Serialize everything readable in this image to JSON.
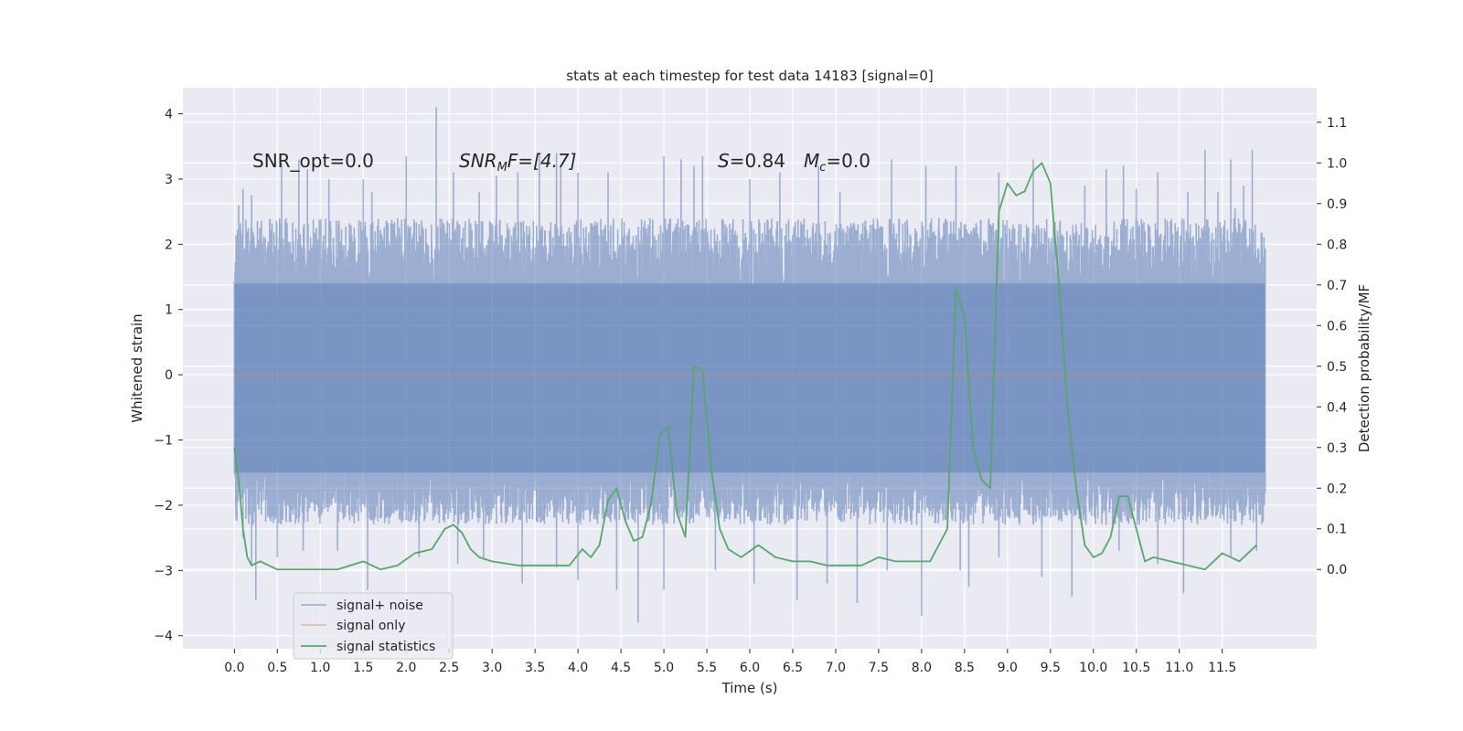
{
  "chart_data": {
    "type": "line",
    "title": "stats at each timestep for test data 14183 [signal=0]",
    "xlabel": "Time (s)",
    "ylabel": "Whitened strain",
    "y2label": "Detection probability/MF",
    "xlim": [
      -0.6,
      12.6
    ],
    "ylim": [
      -4.2,
      4.4
    ],
    "y2lim": [
      -0.195,
      1.185
    ],
    "xticks": [
      "0.0",
      "0.5",
      "1.0",
      "1.5",
      "2.0",
      "2.5",
      "3.0",
      "3.5",
      "4.0",
      "4.5",
      "5.0",
      "5.5",
      "6.0",
      "6.5",
      "7.0",
      "7.5",
      "8.0",
      "8.5",
      "9.0",
      "9.5",
      "10.0",
      "10.5",
      "11.0",
      "11.5"
    ],
    "yticks": [
      "4",
      "3",
      "2",
      "1",
      "0",
      "−1",
      "−2",
      "−3",
      "−4"
    ],
    "y2ticks": [
      "1.1",
      "1.0",
      "0.9",
      "0.8",
      "0.7",
      "0.6",
      "0.5",
      "0.4",
      "0.3",
      "0.2",
      "0.1",
      "0.0"
    ],
    "grid": true,
    "legend_position": "lower-left",
    "annotations": {
      "snr_opt": "SNR_opt=0.0",
      "snr_mf_var": "SNR",
      "snr_mf_sub": "M",
      "snr_mf_rest": "F=[4.7]",
      "s_var": "S",
      "s_rest": "=0.84",
      "mc_var": "M",
      "mc_sub": "c",
      "mc_rest": "=0.0"
    },
    "series": [
      {
        "name": "signal+ noise",
        "color": "#4c72b0",
        "kind": "noise-band",
        "x_range": [
          0.0,
          12.0
        ],
        "band_typical": [
          -1.5,
          1.4
        ],
        "peaks_upper": [
          [
            0.05,
            2.6
          ],
          [
            0.1,
            2.85
          ],
          [
            0.2,
            2.75
          ],
          [
            0.55,
            3.25
          ],
          [
            0.75,
            3.3
          ],
          [
            0.85,
            3.15
          ],
          [
            1.0,
            2.1
          ],
          [
            1.1,
            3.0
          ],
          [
            1.5,
            3.0
          ],
          [
            1.6,
            2.8
          ],
          [
            1.9,
            2.4
          ],
          [
            2.0,
            3.35
          ],
          [
            2.2,
            2.2
          ],
          [
            2.35,
            4.1
          ],
          [
            2.55,
            3.1
          ],
          [
            2.85,
            2.8
          ],
          [
            3.05,
            3.05
          ],
          [
            3.3,
            3.1
          ],
          [
            3.55,
            3.4
          ],
          [
            3.75,
            3.4
          ],
          [
            3.8,
            3.2
          ],
          [
            4.0,
            3.1
          ],
          [
            4.35,
            3.1
          ],
          [
            5.0,
            3.35
          ],
          [
            5.2,
            3.3
          ],
          [
            5.35,
            3.2
          ],
          [
            5.45,
            3.35
          ],
          [
            6.0,
            3.0
          ],
          [
            6.35,
            3.1
          ],
          [
            6.8,
            3.2
          ],
          [
            7.05,
            2.8
          ],
          [
            7.65,
            3.3
          ],
          [
            8.05,
            3.2
          ],
          [
            8.4,
            3.2
          ],
          [
            8.9,
            3.1
          ],
          [
            9.3,
            3.3
          ],
          [
            9.9,
            2.9
          ],
          [
            10.15,
            3.15
          ],
          [
            10.35,
            3.2
          ],
          [
            10.5,
            2.85
          ],
          [
            10.75,
            3.1
          ],
          [
            11.1,
            2.8
          ],
          [
            11.3,
            3.45
          ],
          [
            11.45,
            2.8
          ],
          [
            11.6,
            3.3
          ],
          [
            11.65,
            2.55
          ],
          [
            11.75,
            2.9
          ],
          [
            11.85,
            3.45
          ]
        ],
        "peaks_lower": [
          [
            0.1,
            -2.5
          ],
          [
            0.2,
            -2.9
          ],
          [
            0.25,
            -3.45
          ],
          [
            0.5,
            -2.8
          ],
          [
            0.8,
            -2.7
          ],
          [
            1.2,
            -2.7
          ],
          [
            1.55,
            -3.3
          ],
          [
            2.15,
            -2.8
          ],
          [
            2.6,
            -2.9
          ],
          [
            2.9,
            -2.8
          ],
          [
            3.35,
            -3.2
          ],
          [
            3.75,
            -2.95
          ],
          [
            4.0,
            -3.15
          ],
          [
            4.45,
            -3.3
          ],
          [
            4.7,
            -3.8
          ],
          [
            5.0,
            -3.3
          ],
          [
            5.6,
            -3.0
          ],
          [
            6.05,
            -3.2
          ],
          [
            6.55,
            -3.45
          ],
          [
            6.9,
            -3.2
          ],
          [
            7.25,
            -3.5
          ],
          [
            7.6,
            -3.0
          ],
          [
            8.0,
            -3.7
          ],
          [
            8.45,
            -3.0
          ],
          [
            8.55,
            -3.25
          ],
          [
            8.9,
            -2.8
          ],
          [
            9.4,
            -3.1
          ],
          [
            9.75,
            -3.4
          ],
          [
            10.3,
            -2.7
          ],
          [
            10.75,
            -2.9
          ],
          [
            11.05,
            -3.35
          ],
          [
            11.6,
            -2.8
          ],
          [
            11.9,
            -2.7
          ]
        ]
      },
      {
        "name": "signal only",
        "color": "#dd8452",
        "x": [
          0.0,
          12.0
        ],
        "y": [
          0.0,
          0.0
        ]
      },
      {
        "name": "signal statistics",
        "color": "#55a868",
        "axis": "right",
        "x": [
          0.0,
          0.05,
          0.1,
          0.15,
          0.2,
          0.3,
          0.4,
          0.5,
          0.6,
          0.8,
          1.0,
          1.2,
          1.5,
          1.7,
          1.9,
          2.1,
          2.3,
          2.45,
          2.55,
          2.65,
          2.75,
          2.85,
          3.0,
          3.3,
          3.6,
          3.9,
          4.05,
          4.15,
          4.25,
          4.35,
          4.45,
          4.55,
          4.65,
          4.75,
          4.85,
          4.95,
          5.05,
          5.15,
          5.25,
          5.35,
          5.45,
          5.55,
          5.65,
          5.75,
          5.9,
          6.1,
          6.3,
          6.5,
          6.7,
          6.9,
          7.1,
          7.3,
          7.5,
          7.7,
          7.9,
          8.1,
          8.3,
          8.4,
          8.5,
          8.6,
          8.7,
          8.8,
          8.9,
          9.0,
          9.1,
          9.2,
          9.3,
          9.4,
          9.5,
          9.6,
          9.7,
          9.8,
          9.9,
          10.0,
          10.1,
          10.2,
          10.3,
          10.4,
          10.5,
          10.6,
          10.7,
          10.9,
          11.1,
          11.3,
          11.5,
          11.7,
          11.9
        ],
        "y": [
          0.3,
          0.22,
          0.1,
          0.03,
          0.01,
          0.02,
          0.01,
          0.0,
          0.0,
          0.0,
          0.0,
          0.0,
          0.02,
          0.0,
          0.01,
          0.04,
          0.05,
          0.1,
          0.11,
          0.09,
          0.05,
          0.03,
          0.02,
          0.01,
          0.01,
          0.01,
          0.05,
          0.03,
          0.06,
          0.17,
          0.2,
          0.12,
          0.07,
          0.08,
          0.16,
          0.33,
          0.35,
          0.14,
          0.08,
          0.5,
          0.49,
          0.25,
          0.1,
          0.05,
          0.03,
          0.06,
          0.03,
          0.02,
          0.02,
          0.01,
          0.01,
          0.01,
          0.03,
          0.02,
          0.02,
          0.02,
          0.1,
          0.69,
          0.62,
          0.3,
          0.22,
          0.2,
          0.88,
          0.95,
          0.92,
          0.93,
          0.98,
          1.0,
          0.95,
          0.7,
          0.4,
          0.2,
          0.06,
          0.03,
          0.04,
          0.08,
          0.18,
          0.18,
          0.1,
          0.02,
          0.03,
          0.02,
          0.01,
          0.0,
          0.04,
          0.02,
          0.06
        ]
      }
    ]
  }
}
